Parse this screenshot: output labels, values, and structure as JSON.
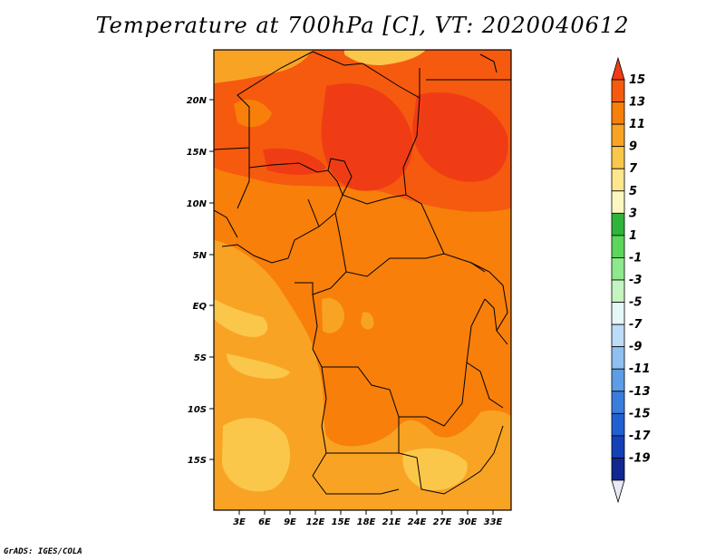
{
  "title": "Temperature at 700hPa [C], VT: 2020040612",
  "credit": "GrADS: IGES/COLA",
  "map": {
    "lat_ticks": [
      "20N",
      "15N",
      "10N",
      "5N",
      "EQ",
      "5S",
      "10S",
      "15S"
    ],
    "lon_ticks": [
      "3E",
      "6E",
      "9E",
      "12E",
      "15E",
      "18E",
      "21E",
      "24E",
      "27E",
      "30E",
      "33E"
    ]
  },
  "colorbar": {
    "labels": [
      "15",
      "13",
      "11",
      "9",
      "7",
      "5",
      "3",
      "1",
      "-1",
      "-3",
      "-5",
      "-7",
      "-9",
      "-11",
      "-13",
      "-15",
      "-17",
      "-19"
    ],
    "colors": [
      "#f03c14",
      "#f55a0f",
      "#f77f0a",
      "#f9a324",
      "#fbc74a",
      "#fde68c",
      "#fdf7c0",
      "#2fb43c",
      "#5bd65b",
      "#8ee88c",
      "#c4f4bf",
      "#e6f7f8",
      "#bcdcf8",
      "#8fc0f0",
      "#5e9de6",
      "#3b7ddc",
      "#2060d0",
      "#1440b8",
      "#102890",
      "#0a0a6e"
    ]
  }
}
